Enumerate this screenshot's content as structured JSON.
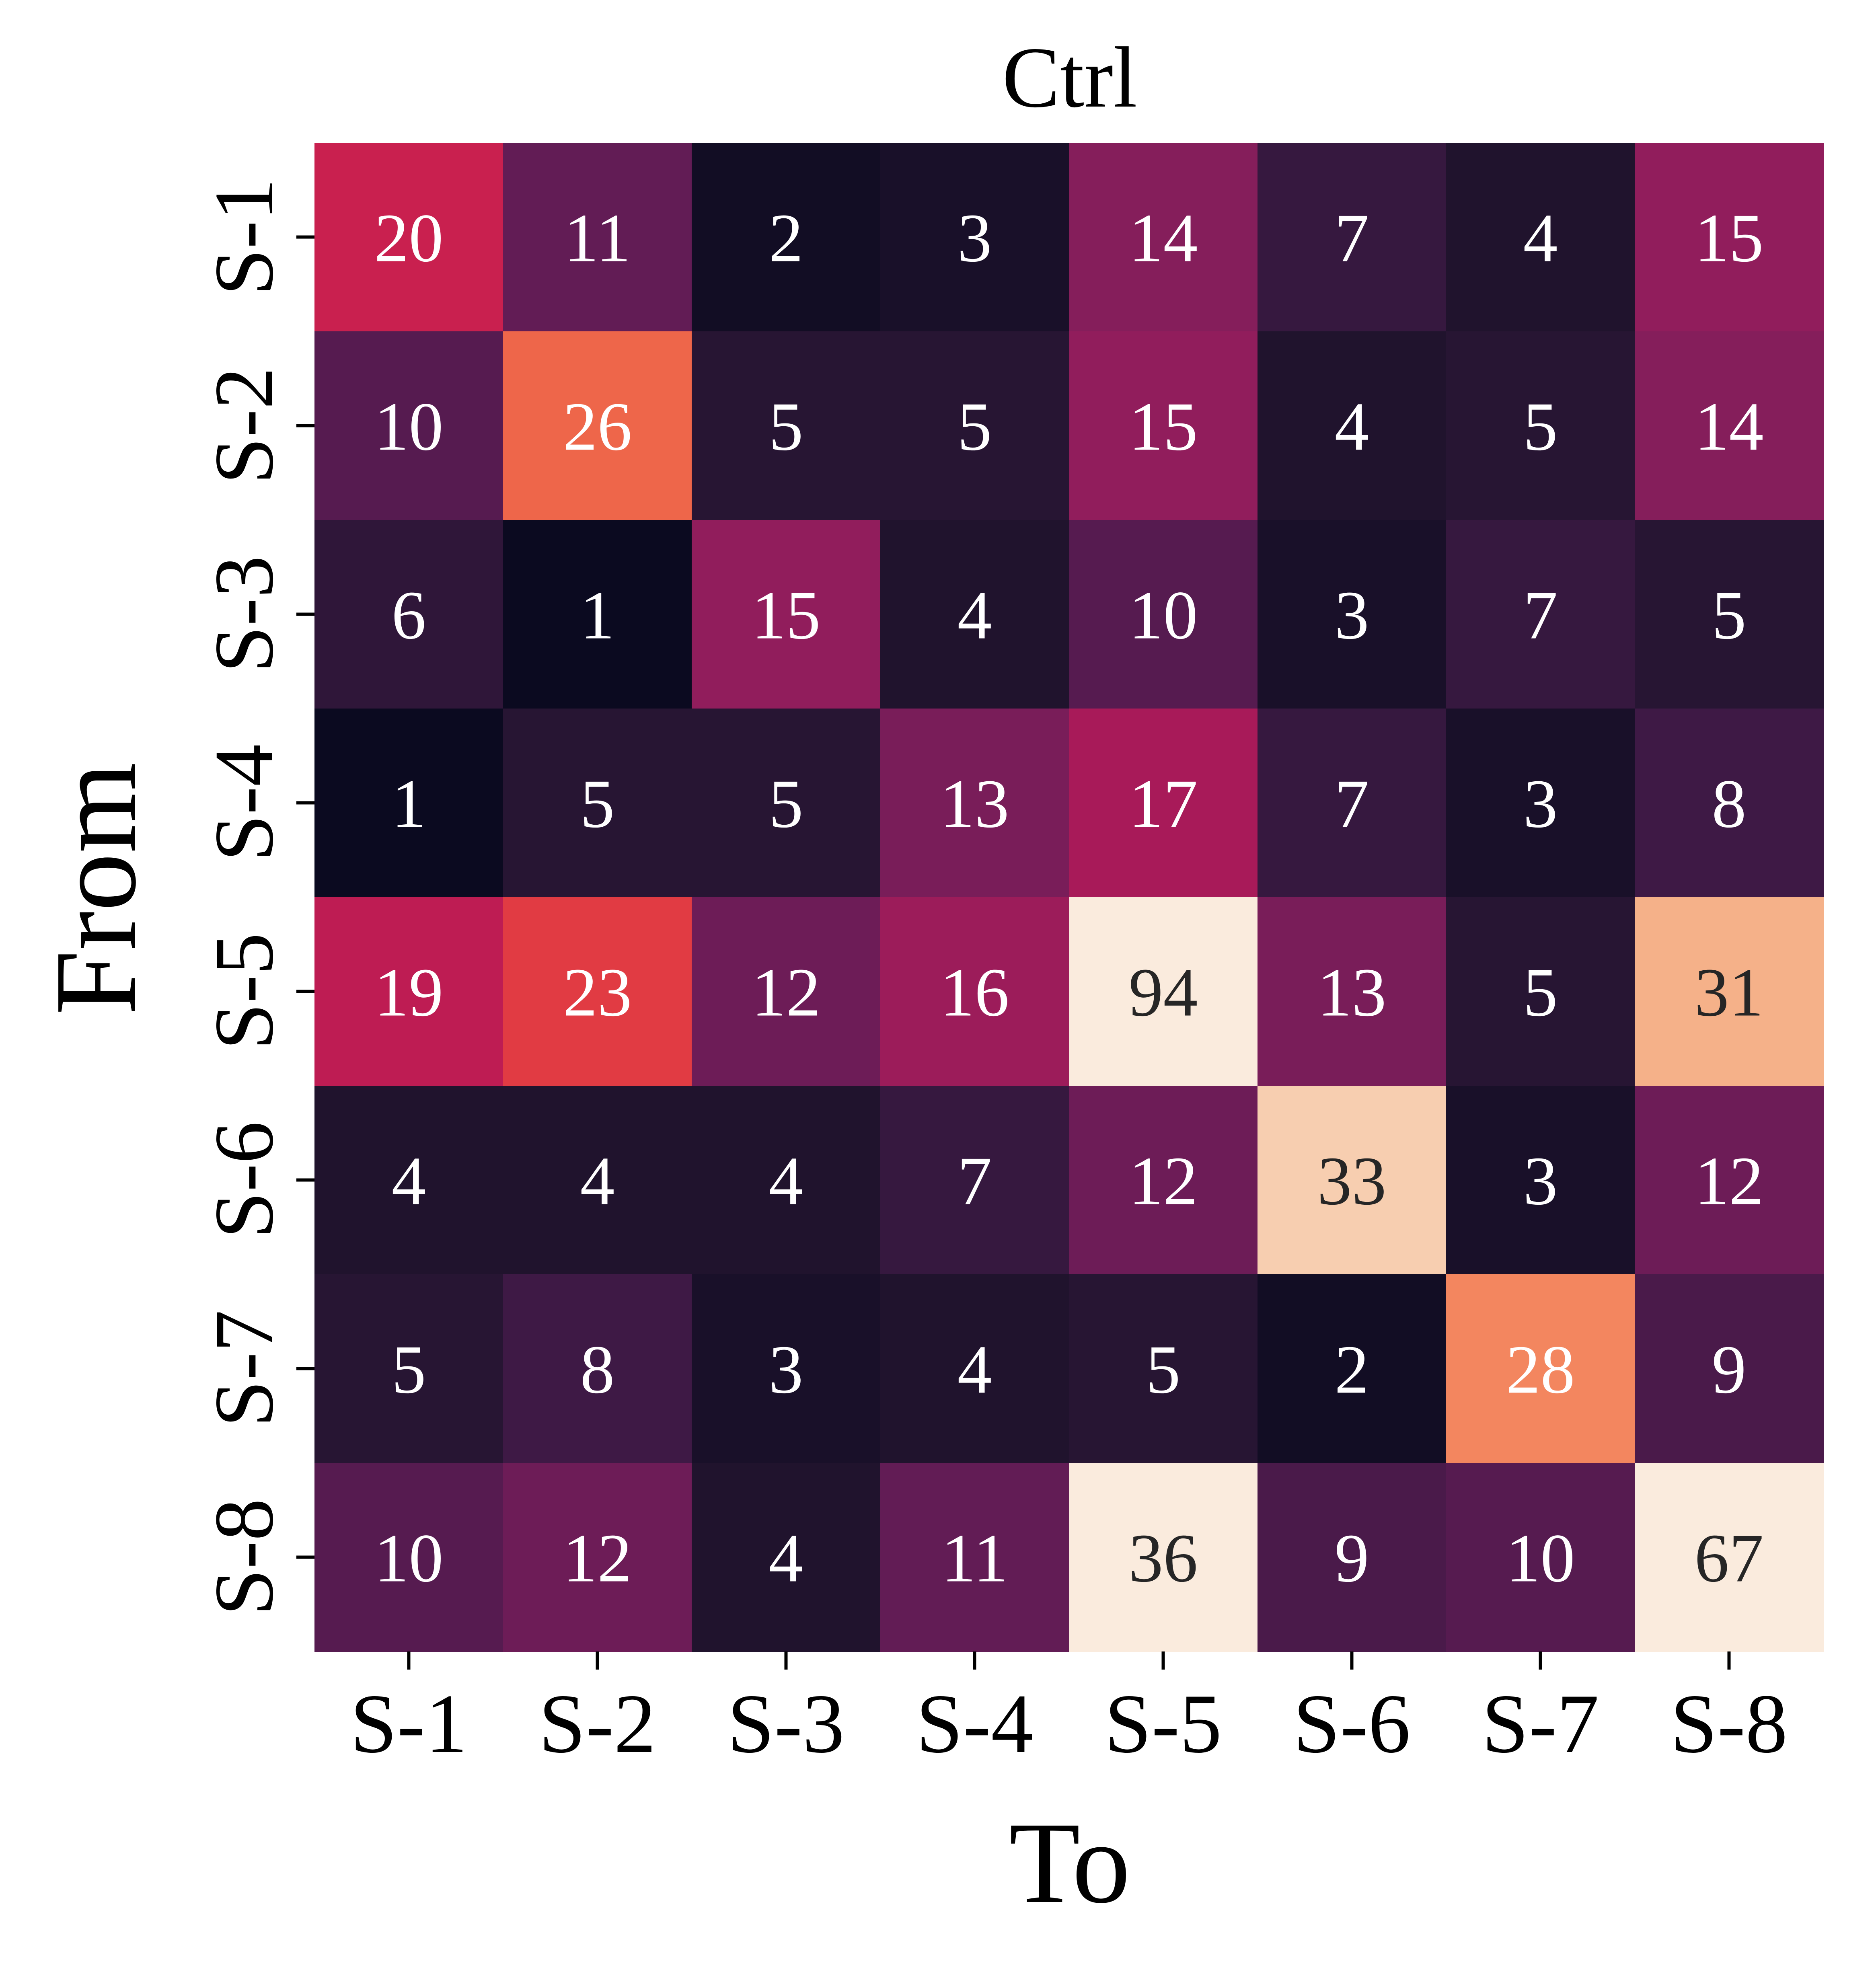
{
  "chart_data": {
    "type": "heatmap",
    "title": "Ctrl",
    "xlabel": "To",
    "ylabel": "From",
    "x_categories": [
      "S-1",
      "S-2",
      "S-3",
      "S-4",
      "S-5",
      "S-6",
      "S-7",
      "S-8"
    ],
    "y_categories": [
      "S-1",
      "S-2",
      "S-3",
      "S-4",
      "S-5",
      "S-6",
      "S-7",
      "S-8"
    ],
    "values": [
      [
        20,
        11,
        2,
        3,
        14,
        7,
        4,
        15
      ],
      [
        10,
        26,
        5,
        5,
        15,
        4,
        5,
        14
      ],
      [
        6,
        1,
        15,
        4,
        10,
        3,
        7,
        5
      ],
      [
        1,
        5,
        5,
        13,
        17,
        7,
        3,
        8
      ],
      [
        19,
        23,
        12,
        16,
        94,
        13,
        5,
        31
      ],
      [
        4,
        4,
        4,
        7,
        12,
        33,
        3,
        12
      ],
      [
        5,
        8,
        3,
        4,
        5,
        2,
        28,
        9
      ],
      [
        10,
        12,
        4,
        11,
        36,
        9,
        10,
        67
      ]
    ],
    "color_range": [
      1,
      35
    ],
    "colormap": "rocket",
    "annotations": true,
    "colorbar": false,
    "grid": false
  }
}
